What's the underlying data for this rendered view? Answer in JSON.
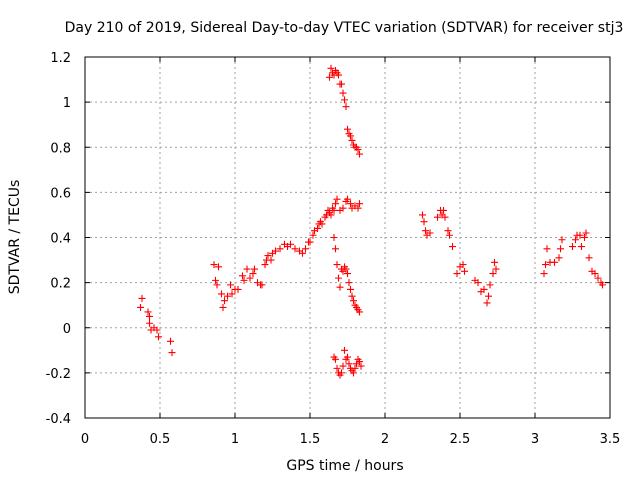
{
  "chart_data": {
    "type": "scatter",
    "title": "Day 210 of 2019, Sidereal Day-to-day VTEC variation (SDTVAR) for receiver stj3",
    "xlabel": "GPS time / hours",
    "ylabel": "SDTVAR / TECUs",
    "xlim": [
      0,
      3.5
    ],
    "ylim": [
      -0.4,
      1.2
    ],
    "xticks": [
      0,
      0.5,
      1,
      1.5,
      2,
      2.5,
      3,
      3.5
    ],
    "xtick_labels": [
      "0",
      "0.5",
      "1",
      "1.5",
      "2",
      "2.5",
      "3",
      "3.5"
    ],
    "yticks": [
      -0.4,
      -0.2,
      0,
      0.2,
      0.4,
      0.6,
      0.8,
      1,
      1.2
    ],
    "ytick_labels": [
      "-0.4",
      "-0.2",
      "0",
      "0.2",
      "0.4",
      "0.6",
      "0.8",
      "1",
      "1.2"
    ],
    "grid": true,
    "marker": "+",
    "marker_color": "#ff0000",
    "series": [
      {
        "name": "SDTVAR",
        "points": [
          [
            0.37,
            0.09
          ],
          [
            0.38,
            0.13
          ],
          [
            0.42,
            0.07
          ],
          [
            0.43,
            0.05
          ],
          [
            0.43,
            0.02
          ],
          [
            0.44,
            -0.01
          ],
          [
            0.46,
            0.0
          ],
          [
            0.48,
            -0.01
          ],
          [
            0.49,
            -0.04
          ],
          [
            0.57,
            -0.06
          ],
          [
            0.58,
            -0.11
          ],
          [
            0.86,
            0.28
          ],
          [
            0.87,
            0.21
          ],
          [
            0.88,
            0.19
          ],
          [
            0.89,
            0.27
          ],
          [
            0.91,
            0.15
          ],
          [
            0.92,
            0.09
          ],
          [
            0.93,
            0.12
          ],
          [
            0.95,
            0.14
          ],
          [
            0.97,
            0.19
          ],
          [
            0.98,
            0.15
          ],
          [
            1.0,
            0.17
          ],
          [
            1.02,
            0.17
          ],
          [
            1.05,
            0.23
          ],
          [
            1.06,
            0.21
          ],
          [
            1.08,
            0.26
          ],
          [
            1.1,
            0.22
          ],
          [
            1.12,
            0.24
          ],
          [
            1.13,
            0.26
          ],
          [
            1.15,
            0.2
          ],
          [
            1.17,
            0.19
          ],
          [
            1.18,
            0.19
          ],
          [
            1.2,
            0.28
          ],
          [
            1.21,
            0.3
          ],
          [
            1.22,
            0.32
          ],
          [
            1.24,
            0.3
          ],
          [
            1.25,
            0.33
          ],
          [
            1.27,
            0.34
          ],
          [
            1.3,
            0.35
          ],
          [
            1.33,
            0.37
          ],
          [
            1.35,
            0.36
          ],
          [
            1.37,
            0.37
          ],
          [
            1.4,
            0.35
          ],
          [
            1.43,
            0.34
          ],
          [
            1.45,
            0.33
          ],
          [
            1.47,
            0.35
          ],
          [
            1.49,
            0.38
          ],
          [
            1.5,
            0.38
          ],
          [
            1.52,
            0.41
          ],
          [
            1.53,
            0.43
          ],
          [
            1.55,
            0.44
          ],
          [
            1.56,
            0.46
          ],
          [
            1.57,
            0.47
          ],
          [
            1.58,
            0.46
          ],
          [
            1.6,
            0.49
          ],
          [
            1.61,
            0.5
          ],
          [
            1.62,
            0.52
          ],
          [
            1.63,
            0.51
          ],
          [
            1.64,
            0.5
          ],
          [
            1.65,
            0.53
          ],
          [
            1.66,
            0.52
          ],
          [
            1.67,
            0.55
          ],
          [
            1.68,
            0.57
          ],
          [
            1.7,
            0.52
          ],
          [
            1.72,
            0.53
          ],
          [
            1.74,
            0.56
          ],
          [
            1.75,
            0.57
          ],
          [
            1.77,
            0.55
          ],
          [
            1.78,
            0.53
          ],
          [
            1.8,
            0.54
          ],
          [
            1.82,
            0.53
          ],
          [
            1.83,
            0.55
          ],
          [
            1.63,
            1.11
          ],
          [
            1.64,
            1.15
          ],
          [
            1.65,
            1.13
          ],
          [
            1.66,
            1.12
          ],
          [
            1.67,
            1.14
          ],
          [
            1.68,
            1.13
          ],
          [
            1.69,
            1.12
          ],
          [
            1.7,
            1.08
          ],
          [
            1.71,
            1.08
          ],
          [
            1.72,
            1.04
          ],
          [
            1.73,
            1.01
          ],
          [
            1.74,
            0.98
          ],
          [
            1.75,
            0.88
          ],
          [
            1.76,
            0.86
          ],
          [
            1.77,
            0.85
          ],
          [
            1.78,
            0.83
          ],
          [
            1.79,
            0.81
          ],
          [
            1.8,
            0.8
          ],
          [
            1.81,
            0.8
          ],
          [
            1.82,
            0.79
          ],
          [
            1.83,
            0.77
          ],
          [
            1.66,
            0.4
          ],
          [
            1.67,
            0.35
          ],
          [
            1.68,
            0.28
          ],
          [
            1.69,
            0.22
          ],
          [
            1.7,
            0.18
          ],
          [
            1.71,
            0.26
          ],
          [
            1.72,
            0.25
          ],
          [
            1.73,
            0.27
          ],
          [
            1.74,
            0.26
          ],
          [
            1.75,
            0.24
          ],
          [
            1.76,
            0.2
          ],
          [
            1.77,
            0.17
          ],
          [
            1.78,
            0.14
          ],
          [
            1.79,
            0.12
          ],
          [
            1.8,
            0.1
          ],
          [
            1.81,
            0.09
          ],
          [
            1.82,
            0.08
          ],
          [
            1.83,
            0.07
          ],
          [
            1.66,
            -0.13
          ],
          [
            1.67,
            -0.14
          ],
          [
            1.68,
            -0.18
          ],
          [
            1.69,
            -0.2
          ],
          [
            1.7,
            -0.21
          ],
          [
            1.71,
            -0.2
          ],
          [
            1.72,
            -0.17
          ],
          [
            1.73,
            -0.1
          ],
          [
            1.74,
            -0.14
          ],
          [
            1.75,
            -0.13
          ],
          [
            1.76,
            -0.16
          ],
          [
            1.77,
            -0.18
          ],
          [
            1.78,
            -0.19
          ],
          [
            1.79,
            -0.2
          ],
          [
            1.8,
            -0.18
          ],
          [
            1.81,
            -0.16
          ],
          [
            1.82,
            -0.14
          ],
          [
            1.83,
            -0.15
          ],
          [
            1.84,
            -0.17
          ],
          [
            2.25,
            0.5
          ],
          [
            2.26,
            0.47
          ],
          [
            2.27,
            0.43
          ],
          [
            2.28,
            0.41
          ],
          [
            2.3,
            0.42
          ],
          [
            2.35,
            0.49
          ],
          [
            2.37,
            0.52
          ],
          [
            2.38,
            0.5
          ],
          [
            2.39,
            0.52
          ],
          [
            2.4,
            0.49
          ],
          [
            2.42,
            0.43
          ],
          [
            2.43,
            0.41
          ],
          [
            2.45,
            0.36
          ],
          [
            2.48,
            0.24
          ],
          [
            2.5,
            0.27
          ],
          [
            2.52,
            0.28
          ],
          [
            2.53,
            0.25
          ],
          [
            2.6,
            0.21
          ],
          [
            2.62,
            0.2
          ],
          [
            2.64,
            0.16
          ],
          [
            2.66,
            0.17
          ],
          [
            2.68,
            0.11
          ],
          [
            2.69,
            0.14
          ],
          [
            2.7,
            0.19
          ],
          [
            2.72,
            0.24
          ],
          [
            2.73,
            0.29
          ],
          [
            2.74,
            0.26
          ],
          [
            3.06,
            0.24
          ],
          [
            3.07,
            0.28
          ],
          [
            3.08,
            0.35
          ],
          [
            3.1,
            0.29
          ],
          [
            3.13,
            0.29
          ],
          [
            3.16,
            0.31
          ],
          [
            3.17,
            0.35
          ],
          [
            3.18,
            0.39
          ],
          [
            3.25,
            0.36
          ],
          [
            3.27,
            0.39
          ],
          [
            3.28,
            0.41
          ],
          [
            3.3,
            0.41
          ],
          [
            3.31,
            0.36
          ],
          [
            3.33,
            0.4
          ],
          [
            3.34,
            0.42
          ],
          [
            3.36,
            0.31
          ],
          [
            3.38,
            0.25
          ],
          [
            3.4,
            0.24
          ],
          [
            3.42,
            0.22
          ],
          [
            3.44,
            0.2
          ],
          [
            3.45,
            0.19
          ]
        ]
      }
    ]
  }
}
